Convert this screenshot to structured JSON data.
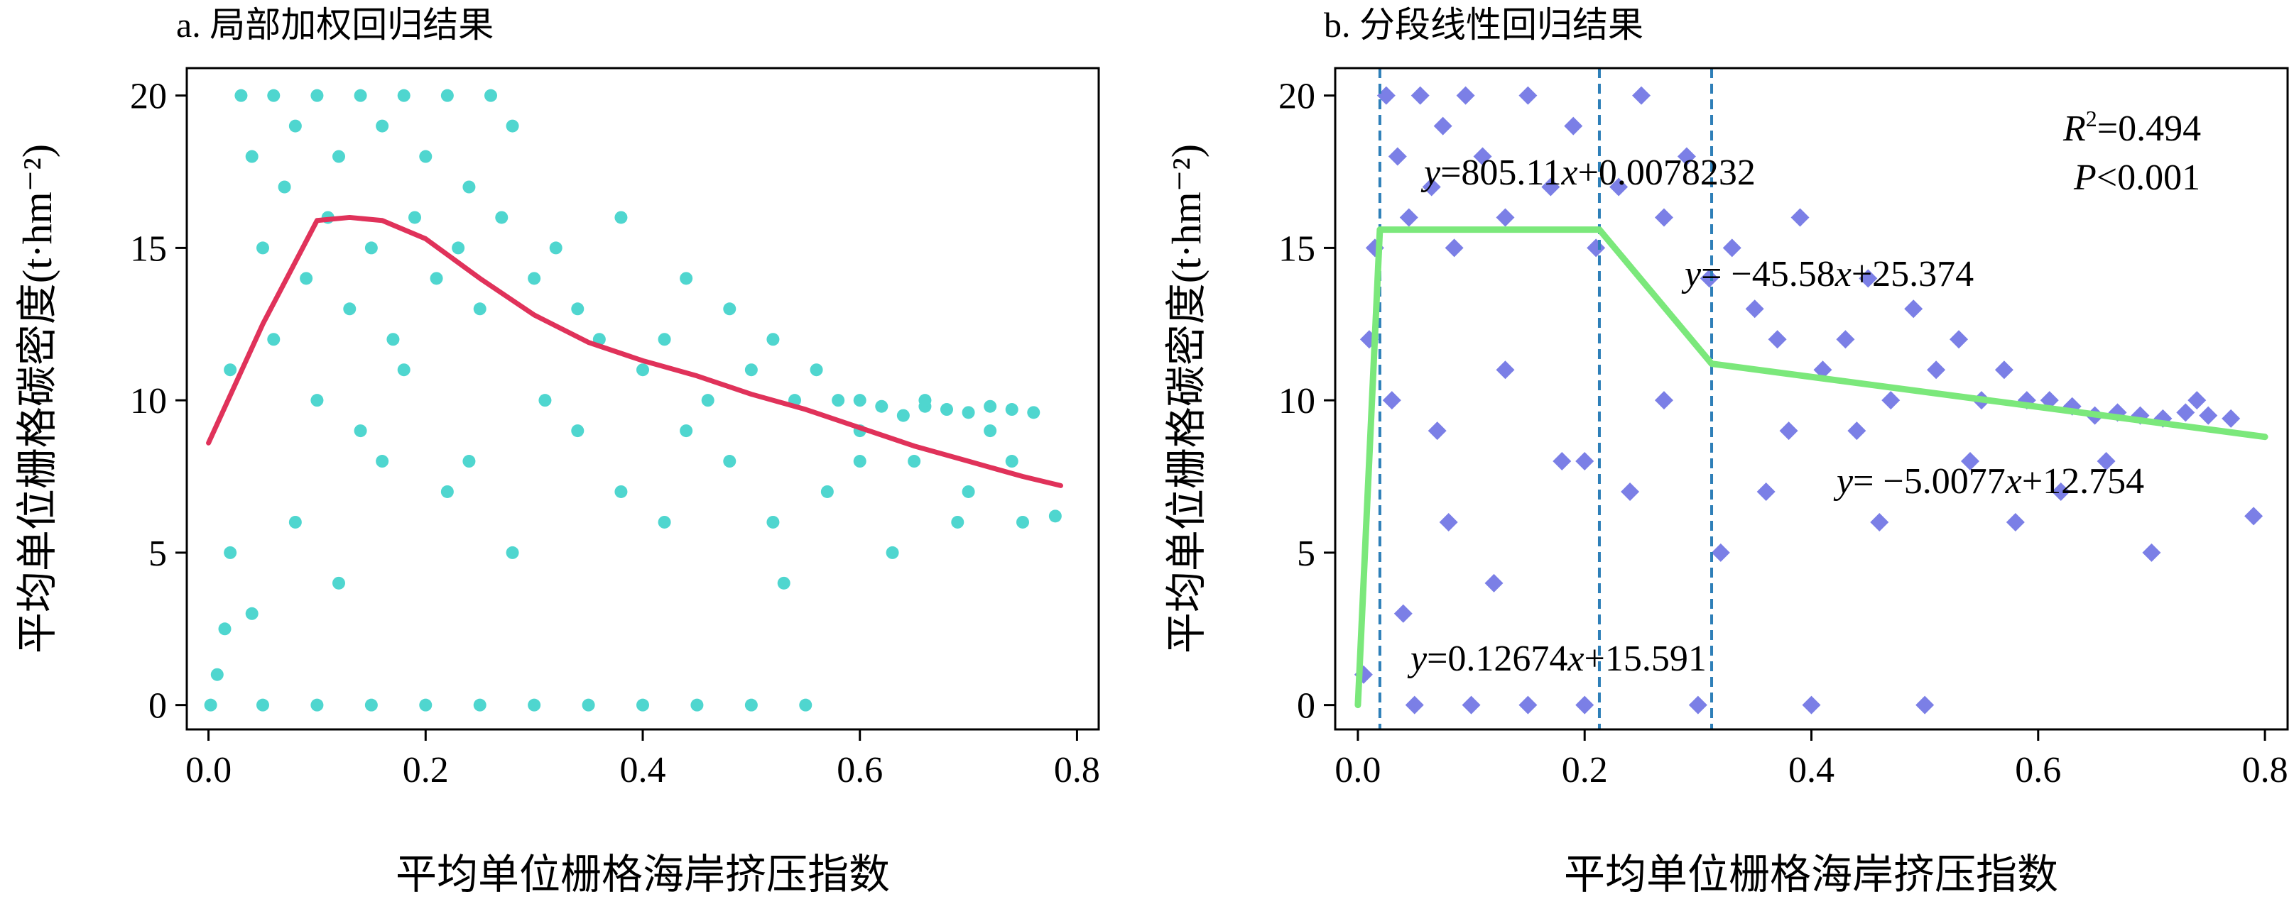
{
  "chart_data": [
    {
      "type": "scatter",
      "title": "a. 局部加权回归结果",
      "xlabel": "平均单位栅格海岸挤压指数",
      "ylabel": "平均单位栅格碳密度(t·hm⁻²)",
      "xlim": [
        -0.02,
        0.82
      ],
      "ylim": [
        -0.8,
        20.9
      ],
      "xticks": [
        0.0,
        0.2,
        0.4,
        0.6,
        0.8
      ],
      "yticks": [
        0,
        5,
        10,
        15,
        20
      ],
      "xtick_labels": [
        "0.0",
        "0.2",
        "0.4",
        "0.6",
        "0.8"
      ],
      "ytick_labels": [
        "0",
        "5",
        "10",
        "15",
        "20"
      ],
      "grid": false,
      "point_color": "#4fd6cf",
      "point_shape": "circle",
      "line_color": "#e0325a",
      "scatter_series": {
        "x": [
          0.002,
          0.008,
          0.015,
          0.02,
          0.03,
          0.04,
          0.05,
          0.06,
          0.07,
          0.08,
          0.09,
          0.1,
          0.11,
          0.12,
          0.13,
          0.14,
          0.15,
          0.16,
          0.17,
          0.18,
          0.19,
          0.2,
          0.21,
          0.22,
          0.23,
          0.24,
          0.25,
          0.26,
          0.27,
          0.28,
          0.3,
          0.32,
          0.34,
          0.36,
          0.38,
          0.4,
          0.42,
          0.44,
          0.46,
          0.48,
          0.5,
          0.52,
          0.54,
          0.56,
          0.58,
          0.6,
          0.62,
          0.64,
          0.66,
          0.68,
          0.7,
          0.72,
          0.74,
          0.76,
          0.78,
          0.05,
          0.1,
          0.15,
          0.2,
          0.25,
          0.3,
          0.35,
          0.4,
          0.45,
          0.5,
          0.55,
          0.6,
          0.65,
          0.7,
          0.75,
          0.04,
          0.08,
          0.12,
          0.16,
          0.22,
          0.28,
          0.34,
          0.42,
          0.48,
          0.53,
          0.57,
          0.63,
          0.69,
          0.74,
          0.02,
          0.06,
          0.1,
          0.14,
          0.18,
          0.24,
          0.31,
          0.38,
          0.44,
          0.52,
          0.6,
          0.66,
          0.72
        ],
        "y": [
          0,
          1,
          2.5,
          5,
          20,
          18,
          15,
          20,
          17,
          19,
          14,
          20,
          16,
          18,
          13,
          20,
          15,
          19,
          12,
          20,
          16,
          18,
          14,
          20,
          15,
          17,
          13,
          20,
          16,
          19,
          14,
          15,
          13,
          12,
          16,
          11,
          12,
          14,
          10,
          13,
          11,
          12,
          10,
          11,
          10,
          10,
          9.8,
          9.5,
          9.8,
          9.7,
          9.6,
          9.8,
          9.7,
          9.6,
          6.2,
          0,
          0,
          0,
          0,
          0,
          0,
          0,
          0,
          0,
          0,
          0,
          9,
          8,
          7,
          6,
          3,
          6,
          4,
          8,
          7,
          5,
          9,
          6,
          8,
          4,
          7,
          5,
          6,
          8,
          11,
          12,
          10,
          9,
          11,
          8,
          10,
          7,
          9,
          6,
          8,
          10,
          9
        ]
      },
      "line_series": {
        "name": "",
        "x": [
          0.0,
          0.05,
          0.1,
          0.13,
          0.16,
          0.2,
          0.25,
          0.3,
          0.35,
          0.4,
          0.45,
          0.5,
          0.55,
          0.6,
          0.65,
          0.7,
          0.75,
          0.785
        ],
        "y": [
          8.6,
          12.5,
          15.9,
          16.0,
          15.9,
          15.3,
          14.0,
          12.8,
          11.9,
          11.3,
          10.8,
          10.2,
          9.7,
          9.1,
          8.5,
          8.0,
          7.5,
          7.2
        ]
      }
    },
    {
      "type": "scatter",
      "title": "b. 分段线性回归结果",
      "xlabel": "平均单位栅格海岸挤压指数",
      "ylabel": "平均单位栅格碳密度(t·hm⁻²)",
      "xlim": [
        -0.02,
        0.82
      ],
      "ylim": [
        -0.8,
        20.9
      ],
      "xticks": [
        0.0,
        0.2,
        0.4,
        0.6,
        0.8
      ],
      "yticks": [
        0,
        5,
        10,
        15,
        20
      ],
      "xtick_labels": [
        "0.0",
        "0.2",
        "0.4",
        "0.6",
        "0.8"
      ],
      "ytick_labels": [
        "0",
        "5",
        "10",
        "15",
        "20"
      ],
      "grid": false,
      "point_color": "#7b7fe6",
      "point_shape": "diamond",
      "line_color": "#7be87b",
      "breakpoint_color": "#2e7fb8",
      "breakpoints_x": [
        0.0194,
        0.213,
        0.312
      ],
      "scatter_series": {
        "x": [
          0.005,
          0.015,
          0.025,
          0.035,
          0.045,
          0.055,
          0.065,
          0.075,
          0.085,
          0.095,
          0.11,
          0.13,
          0.15,
          0.17,
          0.19,
          0.21,
          0.23,
          0.25,
          0.27,
          0.29,
          0.31,
          0.33,
          0.35,
          0.37,
          0.39,
          0.41,
          0.43,
          0.45,
          0.47,
          0.49,
          0.51,
          0.53,
          0.55,
          0.57,
          0.59,
          0.61,
          0.63,
          0.65,
          0.67,
          0.69,
          0.71,
          0.73,
          0.75,
          0.77,
          0.79,
          0.05,
          0.1,
          0.15,
          0.2,
          0.3,
          0.4,
          0.5,
          0.04,
          0.08,
          0.12,
          0.18,
          0.24,
          0.32,
          0.38,
          0.46,
          0.54,
          0.62,
          0.7,
          0.01,
          0.03,
          0.07,
          0.13,
          0.2,
          0.27,
          0.36,
          0.44,
          0.58,
          0.66,
          0.74
        ],
        "y": [
          1,
          15,
          20,
          18,
          16,
          20,
          17,
          19,
          15,
          20,
          18,
          16,
          20,
          17,
          19,
          15,
          17,
          20,
          16,
          18,
          14,
          15,
          13,
          12,
          16,
          11,
          12,
          14,
          10,
          13,
          11,
          12,
          10,
          11,
          10,
          10,
          9.8,
          9.5,
          9.6,
          9.5,
          9.4,
          9.6,
          9.5,
          9.4,
          6.2,
          0,
          0,
          0,
          0,
          0,
          0,
          0,
          3,
          6,
          4,
          8,
          7,
          5,
          9,
          6,
          8,
          7,
          5,
          12,
          10,
          9,
          11,
          8,
          10,
          7,
          9,
          6,
          8,
          10
        ]
      },
      "line_series": {
        "name": "",
        "x": [
          0.0,
          0.0194,
          0.213,
          0.312,
          0.8
        ],
        "y": [
          0.0,
          15.6,
          15.6,
          11.2,
          8.8
        ]
      },
      "equations": [
        {
          "y_part": "y",
          "mid": "=805.11",
          "x_part": "x",
          "end": "+0.0078232"
        },
        {
          "y_part": "y",
          "mid": "= −45.58",
          "x_part": "x",
          "end": "+25.374"
        },
        {
          "y_part": "y",
          "mid": "= −5.0077",
          "x_part": "x",
          "end": "+12.754"
        },
        {
          "y_part": "y",
          "mid": "=0.12674",
          "x_part": "x",
          "end": "+15.591"
        }
      ],
      "stats": {
        "r2_letter": "R",
        "r2_sup": "2",
        "r2_value": "=0.494",
        "p_letter": "P",
        "p_value": "<0.001"
      }
    }
  ]
}
